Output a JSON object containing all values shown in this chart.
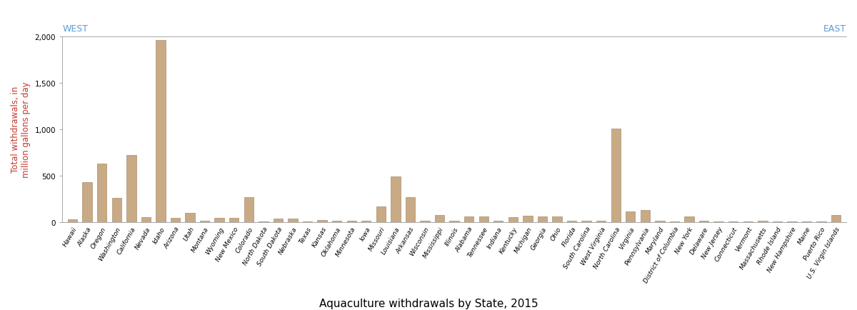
{
  "states": [
    "Hawaii",
    "Alaska",
    "Oregon",
    "Washington",
    "California",
    "Nevada",
    "Idaho",
    "Arizona",
    "Utah",
    "Montana",
    "Wyoming",
    "New Mexico",
    "Colorado",
    "North Dakota",
    "South Dakota",
    "Nebraska",
    "Texas",
    "Kansas",
    "Oklahoma",
    "Minnesota",
    "Iowa",
    "Missouri",
    "Louisiana",
    "Arkansas",
    "Wisconsin",
    "Mississippi",
    "Illinois",
    "Alabama",
    "Tennessee",
    "Indiana",
    "Kentucky",
    "Michigan",
    "Georgia",
    "Ohio",
    "Florida",
    "South Carolina",
    "West Virginia",
    "North Carolina",
    "Virginia",
    "Pennsylvania",
    "Maryland",
    "District of Columbia",
    "New York",
    "Delaware",
    "New Jersey",
    "Connecticut",
    "Vermont",
    "Massachusetts",
    "Rhode Island",
    "New Hampshire",
    "Maine",
    "Puerto Rico",
    "U.S. Virgin Islands"
  ],
  "values": [
    30,
    430,
    630,
    260,
    720,
    50,
    1960,
    45,
    100,
    15,
    40,
    40,
    270,
    5,
    35,
    35,
    5,
    20,
    10,
    10,
    10,
    165,
    490,
    265,
    10,
    75,
    10,
    55,
    60,
    15,
    50,
    65,
    60,
    55,
    10,
    10,
    10,
    1010,
    115,
    130,
    10,
    5,
    55,
    10,
    5,
    5,
    5,
    10,
    5,
    5,
    5,
    5,
    75
  ],
  "bar_color": "#c8aa85",
  "edge_color": "#9a7d5a",
  "ylabel": "Total withdrawals, in\nmillion gallons per day",
  "ylabel_color": "#c0392b",
  "title": "Aquaculture withdrawals by State, 2015",
  "west_label": "WEST",
  "east_label": "EAST",
  "ylim": [
    0,
    2000
  ],
  "yticks": [
    0,
    500,
    1000,
    1500,
    2000
  ],
  "ytick_labels": [
    "0",
    "500",
    "1,000",
    "1,500",
    "2,000"
  ],
  "west_color": "#5b9bd5",
  "east_color": "#5b9bd5",
  "title_fontsize": 11,
  "tick_fontsize": 6.5,
  "ylabel_fontsize": 8.5
}
